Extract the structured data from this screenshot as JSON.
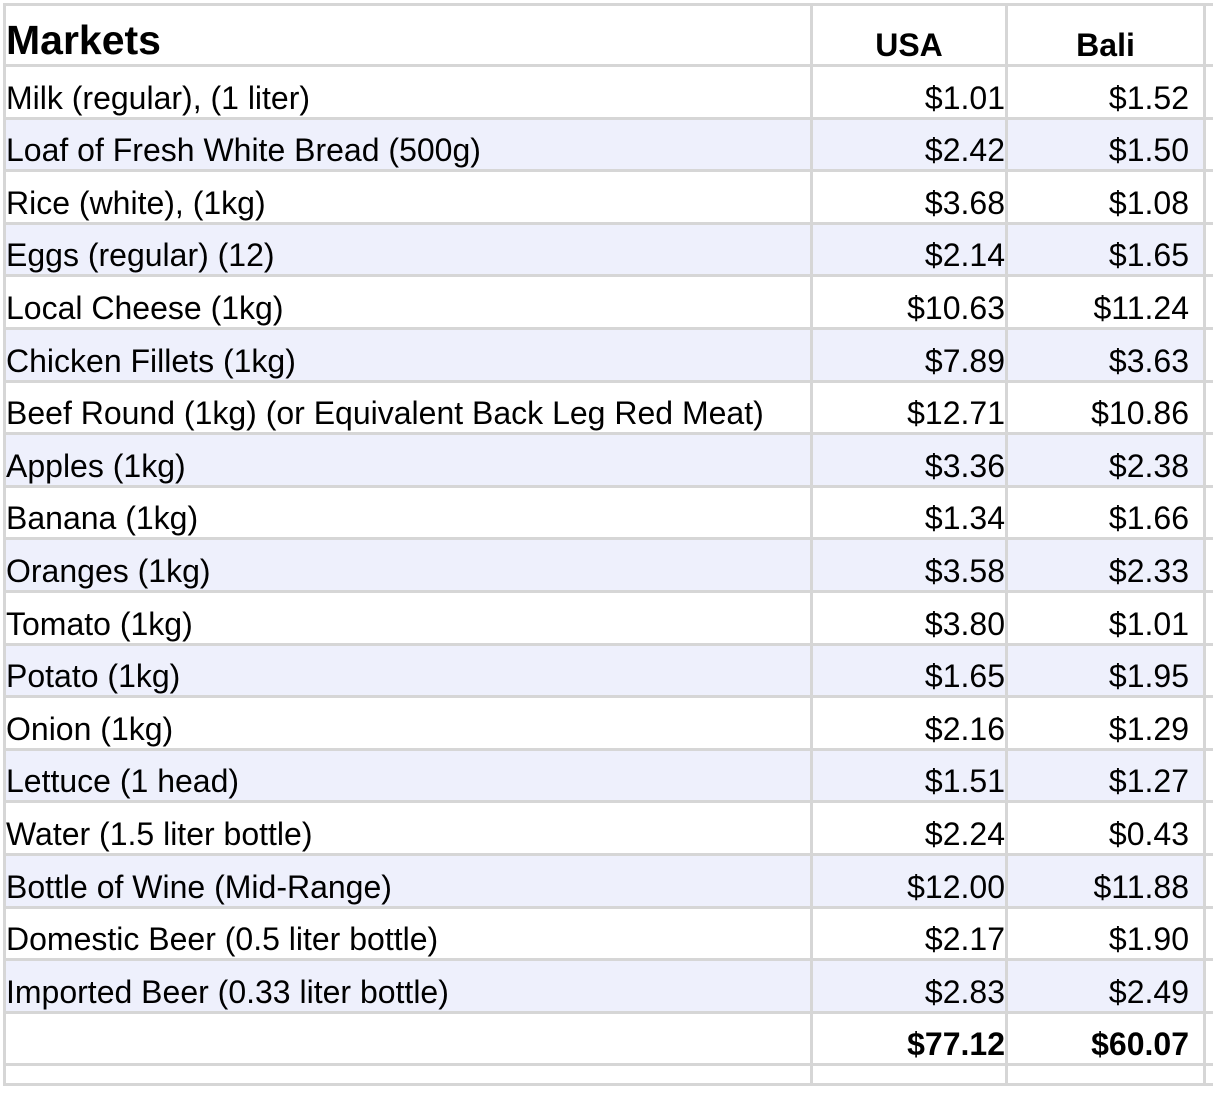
{
  "table": {
    "title": "Markets",
    "columns": [
      "USA",
      "Bali"
    ],
    "rows": [
      {
        "item": "Milk (regular), (1 liter)",
        "usa": "$1.01",
        "bali": "$1.52"
      },
      {
        "item": "Loaf of Fresh White Bread (500g)",
        "usa": "$2.42",
        "bali": "$1.50"
      },
      {
        "item": "Rice (white), (1kg)",
        "usa": "$3.68",
        "bali": "$1.08"
      },
      {
        "item": "Eggs (regular) (12)",
        "usa": "$2.14",
        "bali": "$1.65"
      },
      {
        "item": "Local Cheese (1kg)",
        "usa": "$10.63",
        "bali": "$11.24"
      },
      {
        "item": "Chicken Fillets (1kg)",
        "usa": "$7.89",
        "bali": "$3.63"
      },
      {
        "item": "Beef Round (1kg) (or Equivalent Back Leg Red Meat)",
        "usa": "$12.71",
        "bali": "$10.86"
      },
      {
        "item": "Apples (1kg)",
        "usa": "$3.36",
        "bali": "$2.38"
      },
      {
        "item": "Banana (1kg)",
        "usa": "$1.34",
        "bali": "$1.66"
      },
      {
        "item": "Oranges (1kg)",
        "usa": "$3.58",
        "bali": "$2.33"
      },
      {
        "item": "Tomato (1kg)",
        "usa": "$3.80",
        "bali": "$1.01"
      },
      {
        "item": "Potato (1kg)",
        "usa": "$1.65",
        "bali": "$1.95"
      },
      {
        "item": "Onion (1kg)",
        "usa": "$2.16",
        "bali": "$1.29"
      },
      {
        "item": "Lettuce (1 head)",
        "usa": "$1.51",
        "bali": "$1.27"
      },
      {
        "item": "Water (1.5 liter bottle)",
        "usa": "$2.24",
        "bali": "$0.43"
      },
      {
        "item": "Bottle of Wine (Mid-Range)",
        "usa": "$12.00",
        "bali": "$11.88"
      },
      {
        "item": "Domestic Beer (0.5 liter bottle)",
        "usa": "$2.17",
        "bali": "$1.90"
      },
      {
        "item": "Imported Beer (0.33 liter bottle)",
        "usa": "$2.83",
        "bali": "$2.49"
      }
    ],
    "totals": {
      "usa": "$77.12",
      "bali": "$60.07"
    }
  },
  "colors": {
    "gridline": "#d6d6d6",
    "alternate_row": "#eef0fc"
  }
}
